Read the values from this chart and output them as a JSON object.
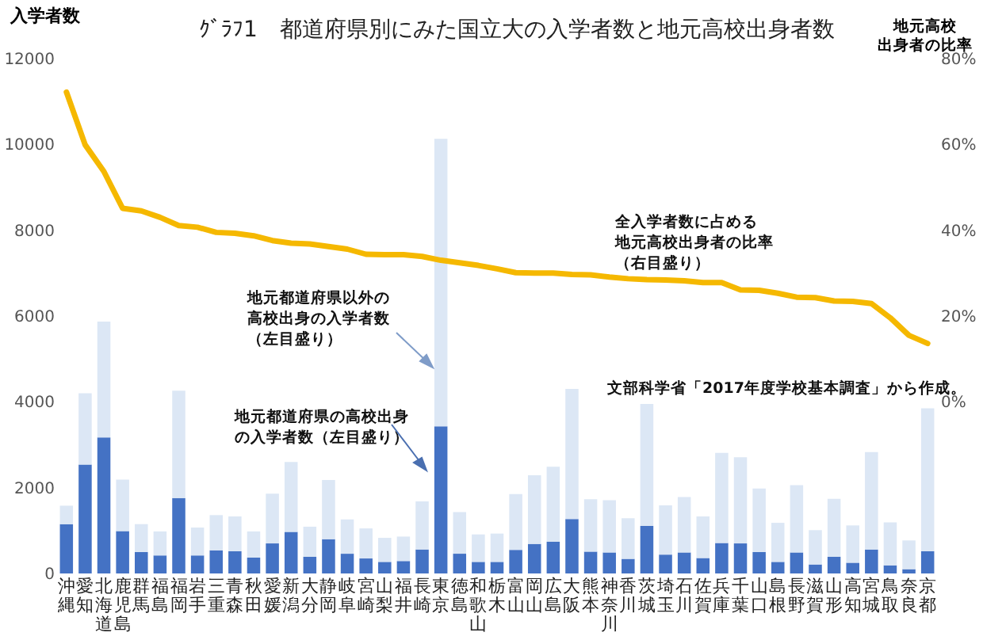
{
  "chart_data": {
    "type": "bar",
    "stacked": true,
    "title": "ｸﾞﾗﾌ1　都道府県別にみた国立大の入学者数と地元高校出身者数",
    "ylabel": "入学者数",
    "y2label": "地元高校出身者の比率",
    "categories": [
      "沖縄",
      "愛知",
      "北海道",
      "鹿児島",
      "群馬",
      "福島",
      "福岡",
      "岩手",
      "三重",
      "青森",
      "秋田",
      "愛媛",
      "新潟",
      "大分",
      "静岡",
      "岐阜",
      "宮崎",
      "山梨",
      "福井",
      "長崎",
      "東京",
      "徳島",
      "和歌山",
      "栃木",
      "富山",
      "岡山",
      "広島",
      "大阪",
      "熊本",
      "神奈川",
      "香川",
      "茨城",
      "埼玉",
      "石川",
      "佐賀",
      "兵庫",
      "千葉",
      "山口",
      "島根",
      "長野",
      "滋賀",
      "山形",
      "高知",
      "宮城",
      "鳥取",
      "奈良",
      "京都"
    ],
    "series": [
      {
        "color": "#4472c4",
        "values": [
          1150,
          2540,
          3170,
          990,
          500,
          420,
          1760,
          420,
          540,
          520,
          370,
          700,
          970,
          390,
          800,
          460,
          350,
          270,
          290,
          560,
          3430,
          460,
          270,
          270,
          550,
          690,
          740,
          1270,
          510,
          490,
          340,
          1110,
          440,
          490,
          360,
          710,
          700,
          500,
          270,
          490,
          210,
          390,
          250,
          560,
          190,
          100,
          520
        ]
      },
      {
        "color": "#dce7f5",
        "values": [
          430,
          1660,
          2700,
          1200,
          650,
          560,
          2500,
          650,
          820,
          810,
          610,
          1160,
          1630,
          700,
          1380,
          800,
          700,
          560,
          570,
          1120,
          6700,
          970,
          640,
          660,
          1300,
          1600,
          1750,
          3030,
          1220,
          1220,
          950,
          2840,
          1150,
          1290,
          970,
          2100,
          2010,
          1480,
          910,
          1570,
          800,
          1350,
          870,
          2270,
          1000,
          670,
          3330
        ]
      },
      {
        "type": "line",
        "axis": "y2",
        "color": "#f5b800",
        "values": [
          72.2,
          59.9,
          53.7,
          45.1,
          44.5,
          43.0,
          41.1,
          40.7,
          39.5,
          39.3,
          38.7,
          37.6,
          37.0,
          36.8,
          36.2,
          35.6,
          34.4,
          34.3,
          34.3,
          33.9,
          33.0,
          32.4,
          31.8,
          31.0,
          30.1,
          30.0,
          30.0,
          29.7,
          29.6,
          29.1,
          28.7,
          28.5,
          28.4,
          28.2,
          27.8,
          27.8,
          26.1,
          26.0,
          25.3,
          24.4,
          24.3,
          23.5,
          23.4,
          22.9,
          19.6,
          15.5,
          13.6
        ]
      }
    ],
    "ylim": [
      0,
      12000
    ],
    "yticks": [
      0,
      2000,
      4000,
      6000,
      8000,
      10000,
      12000
    ],
    "y2lim": [
      -40,
      80
    ],
    "y2ticks": [
      {
        "value": 0,
        "label": "0%"
      },
      {
        "value": 20,
        "label": "20%"
      },
      {
        "value": 40,
        "label": "40%"
      },
      {
        "value": 60,
        "label": "60%"
      },
      {
        "value": 80,
        "label": "80%"
      }
    ],
    "annotations": [
      "地元都道府県以外の高校出身の入学者数（左目盛り）",
      "地元都道府県の高校出身の入学者数（左目盛り）",
      "全入学者数に占める地元高校出身者の比率（右目盛り）",
      "文部科学省「2017年度学校基本調査」から作成。"
    ]
  }
}
